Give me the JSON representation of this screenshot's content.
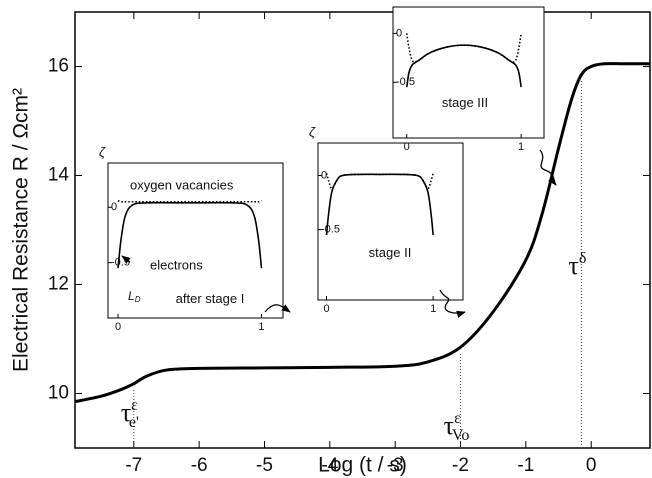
{
  "chart_data": [
    {
      "type": "line",
      "xlabel": "Log (t / s)",
      "ylabel": "Electrical Resistance R / Ωcm²",
      "xlim": [
        -7.9,
        0.9
      ],
      "ylim": [
        9,
        17
      ],
      "xticks": [
        -7,
        -6,
        -5,
        -4,
        -3,
        -2,
        -1,
        0
      ],
      "yticks": [
        10,
        12,
        14,
        16
      ],
      "x": [
        -7.9,
        -7.5,
        -7.2,
        -7,
        -6.8,
        -6.5,
        -6,
        -5,
        -4,
        -3,
        -2.5,
        -2,
        -1.5,
        -1,
        -0.75,
        -0.5,
        -0.3,
        -0.15,
        0,
        0.2,
        0.5,
        0.9
      ],
      "series": [
        {
          "color": "#000000",
          "values": [
            9.85,
            9.95,
            10.07,
            10.18,
            10.32,
            10.43,
            10.46,
            10.47,
            10.48,
            10.5,
            10.58,
            10.85,
            11.5,
            12.45,
            13.3,
            14.5,
            15.4,
            15.85,
            16.0,
            16.05,
            16.05,
            16.05
          ]
        }
      ],
      "markers": [
        {
          "x": -7,
          "label": "τ",
          "sup": "ε",
          "sub": "e'"
        },
        {
          "x": -2,
          "label": "τ",
          "sup": "ε",
          "sub": "Vo"
        },
        {
          "x": -0.15,
          "label": "τ",
          "sup": "δ"
        }
      ]
    },
    {
      "type": "line",
      "ylabel": "ζ",
      "xlim": [
        -0.07,
        1.15
      ],
      "ylim": [
        -1,
        0.4
      ],
      "xticks": [
        0,
        1
      ],
      "yticks": [
        0,
        -0.5
      ],
      "x": [
        0,
        0.02,
        0.05,
        0.1,
        0.2,
        0.5,
        0.8,
        0.9,
        0.95,
        0.98,
        1
      ],
      "series": [
        {
          "name": "electrons",
          "color": "#000000",
          "values": [
            -0.55,
            -0.3,
            -0.08,
            0.02,
            0.04,
            0.04,
            0.04,
            0.02,
            -0.08,
            -0.3,
            -0.55
          ]
        },
        {
          "name": "oxygen vacancies",
          "color": "#000000",
          "values": [
            0.06,
            0.05,
            0.05,
            0.05,
            0.05,
            0.05,
            0.05,
            0.05,
            0.05,
            0.05,
            0.06
          ]
        }
      ],
      "annotations": [
        {
          "text": "after stage I"
        },
        {
          "text": "L",
          "sub": "D"
        }
      ]
    },
    {
      "type": "line",
      "ylabel": "ζ",
      "xlim": [
        -0.08,
        1.28
      ],
      "ylim": [
        -1.15,
        0.3
      ],
      "xticks": [
        0,
        1
      ],
      "yticks": [
        0,
        -0.5
      ],
      "x": [
        0,
        0.02,
        0.05,
        0.1,
        0.15,
        0.3,
        0.5,
        0.7,
        0.85,
        0.9,
        0.95,
        0.98,
        1
      ],
      "series": [
        {
          "color": "#000000",
          "values": [
            -0.55,
            -0.35,
            -0.15,
            -0.04,
            0,
            0.01,
            0.01,
            0.01,
            0,
            -0.04,
            -0.15,
            -0.35,
            -0.55
          ]
        },
        {
          "color": "#000000",
          "values": [
            0.02,
            -0.05,
            -0.12,
            -0.04,
            0,
            0.01,
            0.01,
            0.01,
            0,
            -0.04,
            -0.12,
            -0.05,
            0.02
          ]
        }
      ],
      "annotations": [
        {
          "text": "stage II"
        }
      ]
    },
    {
      "type": "line",
      "xlim": [
        -0.12,
        1.2
      ],
      "ylim": [
        -1.07,
        0.27
      ],
      "xticks": [
        0,
        1
      ],
      "yticks": [
        0,
        -0.5
      ],
      "x": [
        0,
        0.02,
        0.05,
        0.1,
        0.2,
        0.35,
        0.5,
        0.65,
        0.8,
        0.9,
        0.95,
        0.98,
        1
      ],
      "series": [
        {
          "color": "#000000",
          "values": [
            -0.55,
            -0.4,
            -0.32,
            -0.28,
            -0.2,
            -0.14,
            -0.12,
            -0.14,
            -0.2,
            -0.28,
            -0.32,
            -0.4,
            -0.55
          ]
        },
        {
          "color": "#000000",
          "values": [
            0.0,
            -0.15,
            -0.28,
            -0.28,
            -0.2,
            -0.14,
            -0.12,
            -0.14,
            -0.2,
            -0.28,
            -0.28,
            -0.15,
            0.0
          ]
        }
      ],
      "annotations": [
        {
          "text": "stage III"
        }
      ]
    }
  ]
}
